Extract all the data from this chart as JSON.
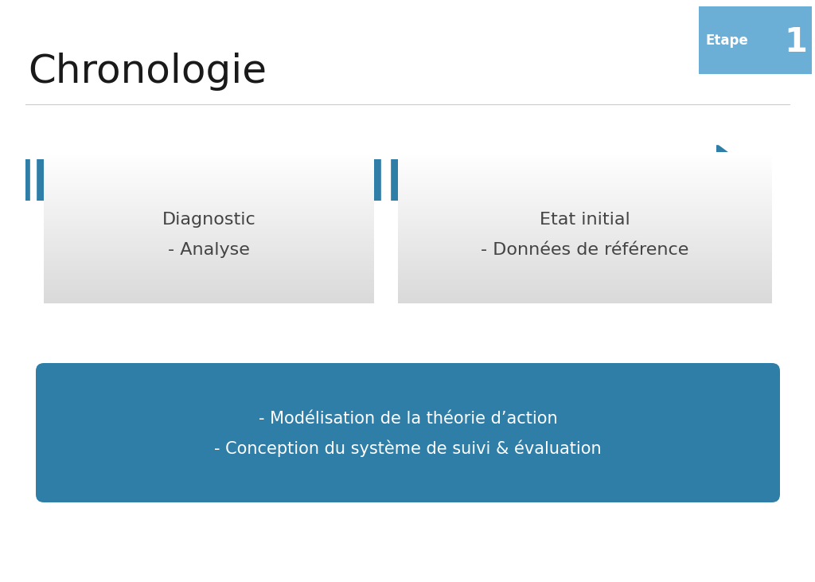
{
  "title": "Chronologie",
  "etape_label": "Etape",
  "etape_number": "1",
  "etape_bg": "#6baed6",
  "arrow_color": "#2e7ea8",
  "separator_color": "#cccccc",
  "box1_text_line1": "Diagnostic",
  "box1_text_line2": "- Analyse",
  "box2_text_line1": "Etat initial",
  "box2_text_line2": "- Données de référence",
  "bottom_box_color": "#2e7ea8",
  "bottom_text_line1": "- Modélisation de la théorie d’action",
  "bottom_text_line2": "- Conception du système de suivi & évaluation",
  "bg_color": "#ffffff",
  "text_color_dark": "#333333",
  "text_color_white": "#ffffff"
}
